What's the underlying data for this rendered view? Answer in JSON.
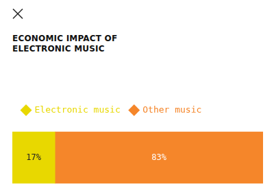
{
  "chart_data": {
    "type": "bar",
    "title": "ECONOMIC IMPACT OF ELECTRONIC MUSIC",
    "orientation": "horizontal",
    "stacked": true,
    "data_labels": true,
    "tick_labels": false,
    "legend": "top",
    "categories": [
      null
    ],
    "xlim": [
      0,
      100
    ],
    "series": [
      {
        "name": "Electronic music",
        "color": "#e8d800",
        "values": [
          17
        ],
        "value_labels": [
          "17%"
        ]
      },
      {
        "name": "Other music",
        "color": "#f5862a",
        "values": [
          83
        ],
        "value_labels": [
          "83%"
        ]
      }
    ]
  }
}
